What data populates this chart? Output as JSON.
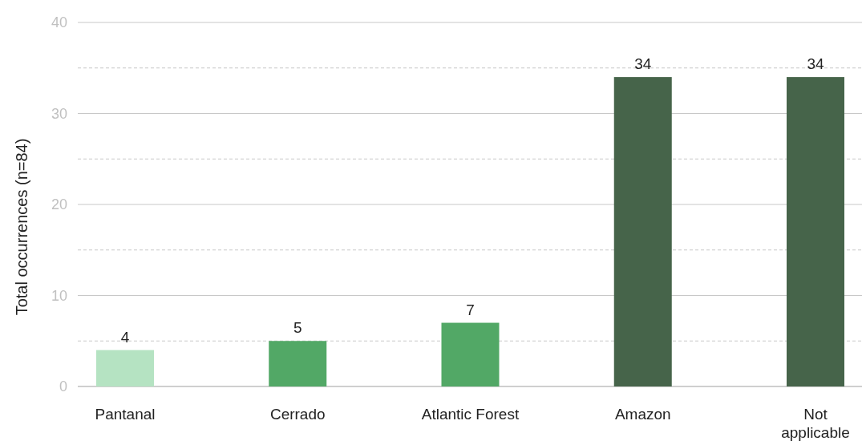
{
  "chart_data": {
    "type": "bar",
    "ylabel": "Total occurrences (n=84)",
    "categories": [
      "Pantanal",
      "Cerrado",
      "Atlantic Forest",
      "Amazon",
      "Not applicable"
    ],
    "values": [
      4,
      5,
      7,
      34,
      34
    ],
    "colors": [
      "#b5e3c2",
      "#52a866",
      "#52a866",
      "#46644a",
      "#46644a"
    ],
    "ylim": [
      0,
      40
    ],
    "yticks": [
      0,
      {
        "value": 5,
        "label": null
      },
      10,
      {
        "value": 15,
        "label": null
      },
      20,
      {
        "value": 25,
        "label": null
      },
      30,
      {
        "value": 35,
        "label": null
      },
      40
    ],
    "grid": true,
    "data_labels": true
  }
}
